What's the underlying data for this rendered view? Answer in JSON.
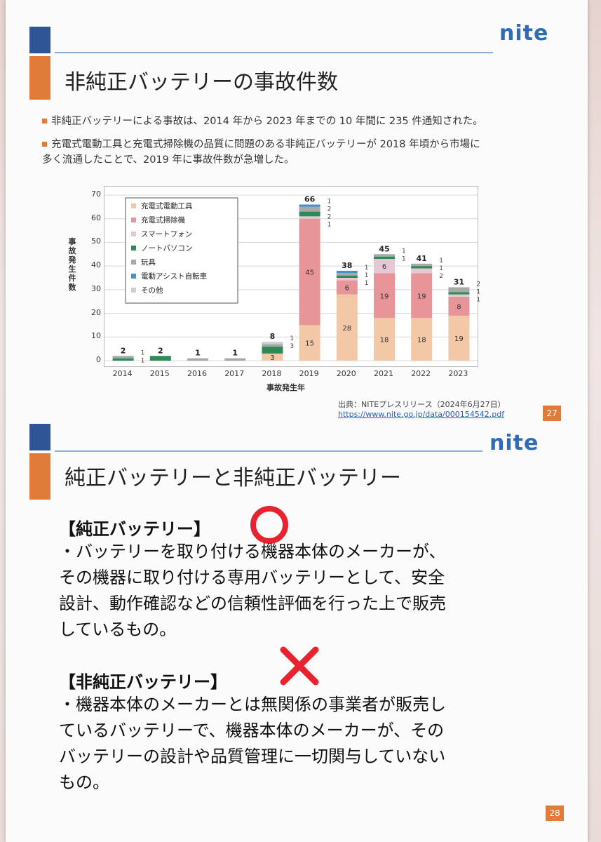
{
  "logo_text": "nite",
  "slide1": {
    "title": "非純正バッテリーの事故件数",
    "bullets": [
      "非純正バッテリーによる事故は、2014 年から 2023 年までの 10 年間に 235 件通知された。",
      "充電式電動工具と充電式掃除機の品質に問題のある非純正バッテリーが 2018 年頃から市場に",
      "多く流通したことで、2019 年に事故件数が急増した。"
    ],
    "source_label": "出典：NITEプレスリリース（2024年6月27日）",
    "source_url": "https://www.nite.go.jp/data/000154542.pdf",
    "page_number": "27"
  },
  "chart_data": {
    "type": "bar",
    "stacked": true,
    "title": "",
    "xlabel": "事故発生年",
    "ylabel": "事故発生件数",
    "ylim": [
      0,
      70
    ],
    "yticks": [
      0,
      10,
      20,
      30,
      40,
      50,
      60,
      70
    ],
    "grid": true,
    "legend_position": "top-left",
    "categories": [
      "2014",
      "2015",
      "2016",
      "2017",
      "2018",
      "2019",
      "2020",
      "2021",
      "2022",
      "2023"
    ],
    "totals": [
      2,
      2,
      1,
      1,
      8,
      66,
      38,
      45,
      41,
      31
    ],
    "series": [
      {
        "name": "充電式電動工具",
        "color": "#f3c8a6",
        "values": [
          0,
          0,
          0,
          0,
          3,
          15,
          28,
          18,
          18,
          19
        ]
      },
      {
        "name": "充電式掃除機",
        "color": "#e8959a",
        "values": [
          0,
          0,
          0,
          0,
          0,
          45,
          6,
          19,
          19,
          8
        ]
      },
      {
        "name": "スマートフォン",
        "color": "#e6c7d6",
        "values": [
          0,
          0,
          0,
          0,
          0,
          1,
          1,
          6,
          2,
          1
        ]
      },
      {
        "name": "ノートパソコン",
        "color": "#2e8b57",
        "values": [
          1,
          2,
          0,
          0,
          3,
          2,
          1,
          1,
          1,
          1
        ]
      },
      {
        "name": "玩具",
        "color": "#a8a8a8",
        "values": [
          1,
          0,
          1,
          1,
          1,
          2,
          1,
          1,
          1,
          2
        ]
      },
      {
        "name": "電動アシスト自転車",
        "color": "#4a90c8",
        "values": [
          0,
          0,
          0,
          0,
          0,
          1,
          1,
          0,
          0,
          0
        ]
      },
      {
        "name": "その他",
        "color": "#d0d0d0",
        "values": [
          0,
          0,
          0,
          0,
          1,
          0,
          0,
          0,
          0,
          0
        ]
      }
    ],
    "inside_labels": [
      {
        "category": "2018",
        "value": "3"
      },
      {
        "category": "2019",
        "value": "15"
      },
      {
        "category": "2019",
        "value": "45"
      },
      {
        "category": "2020",
        "value": "28"
      },
      {
        "category": "2020",
        "value": "6"
      },
      {
        "category": "2021",
        "value": "18"
      },
      {
        "category": "2021",
        "value": "19"
      },
      {
        "category": "2021",
        "value": "6"
      },
      {
        "category": "2022",
        "value": "18"
      },
      {
        "category": "2022",
        "value": "19"
      },
      {
        "category": "2023",
        "value": "19"
      },
      {
        "category": "2023",
        "value": "8"
      }
    ],
    "side_labels": [
      {
        "category": "2014",
        "value": "1"
      },
      {
        "category": "2014",
        "value": "1"
      },
      {
        "category": "2018",
        "value": "1"
      },
      {
        "category": "2018",
        "value": "3"
      },
      {
        "category": "2019",
        "value": "1"
      },
      {
        "category": "2019",
        "value": "2"
      },
      {
        "category": "2019",
        "value": "2"
      },
      {
        "category": "2019",
        "value": "1"
      },
      {
        "category": "2020",
        "value": "1"
      },
      {
        "category": "2020",
        "value": "1"
      },
      {
        "category": "2020",
        "value": "1"
      },
      {
        "category": "2021",
        "value": "1"
      },
      {
        "category": "2021",
        "value": "1"
      },
      {
        "category": "2022",
        "value": "1"
      },
      {
        "category": "2022",
        "value": "1"
      },
      {
        "category": "2022",
        "value": "2"
      },
      {
        "category": "2023",
        "value": "2"
      },
      {
        "category": "2023",
        "value": "1"
      },
      {
        "category": "2023",
        "value": "1"
      }
    ]
  },
  "slide2": {
    "title": "純正バッテリーと非純正バッテリー",
    "genuine": {
      "heading": "【純正バッテリー】",
      "icon": "circle-icon",
      "lines": [
        "・バッテリーを取り付ける機器本体のメーカーが、",
        "その機器に取り付ける専用バッテリーとして、安全",
        "設計、動作確認などの信頼性評価を行った上で販売",
        "しているもの。"
      ]
    },
    "nongenuine": {
      "heading": "【非純正バッテリー】",
      "icon": "cross-icon",
      "lines": [
        "・機器本体のメーカーとは無関係の事業者が販売し",
        "ているバッテリーで、機器本体のメーカーが、その",
        "バッテリーの設計や品質管理に一切関与していない",
        "もの。"
      ]
    },
    "page_number": "28"
  }
}
